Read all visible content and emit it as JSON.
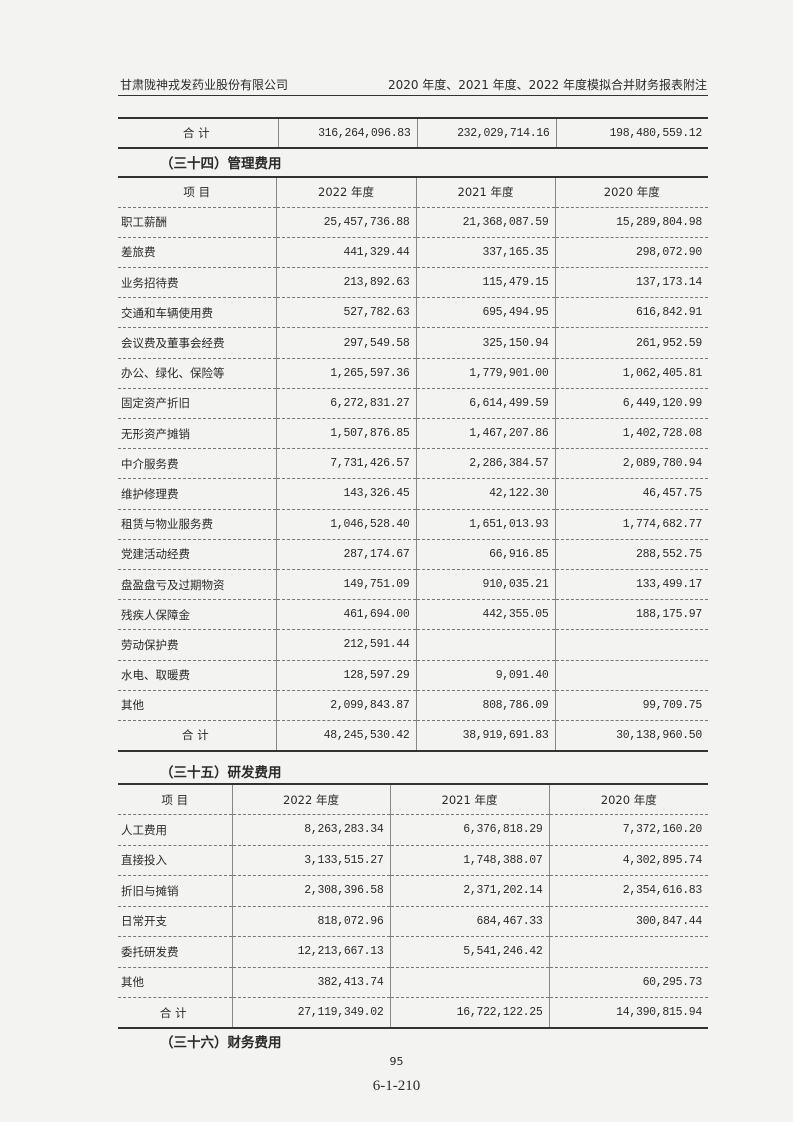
{
  "header": {
    "company": "甘肃陇神戎发药业股份有限公司",
    "report": "2020 年度、2021 年度、2022 年度模拟合并财务报表附注"
  },
  "prev_total": {
    "label": "合  计",
    "values": [
      "316,264,096.83",
      "232,029,714.16",
      "198,480,559.12"
    ]
  },
  "admin_expenses": {
    "title": "（三十四）管理费用",
    "columns": [
      "项  目",
      "2022 年度",
      "2021 年度",
      "2020 年度"
    ],
    "rows": [
      [
        "职工薪酬",
        "25,457,736.88",
        "21,368,087.59",
        "15,289,804.98"
      ],
      [
        "差旅费",
        "441,329.44",
        "337,165.35",
        "298,072.90"
      ],
      [
        "业务招待费",
        "213,892.63",
        "115,479.15",
        "137,173.14"
      ],
      [
        "交通和车辆使用费",
        "527,782.63",
        "695,494.95",
        "616,842.91"
      ],
      [
        "会议费及董事会经费",
        "297,549.58",
        "325,150.94",
        "261,952.59"
      ],
      [
        "办公、绿化、保险等",
        "1,265,597.36",
        "1,779,901.00",
        "1,062,405.81"
      ],
      [
        "固定资产折旧",
        "6,272,831.27",
        "6,614,499.59",
        "6,449,120.99"
      ],
      [
        "无形资产摊销",
        "1,507,876.85",
        "1,467,207.86",
        "1,402,728.08"
      ],
      [
        "中介服务费",
        "7,731,426.57",
        "2,286,384.57",
        "2,089,780.94"
      ],
      [
        "维护修理费",
        "143,326.45",
        "42,122.30",
        "46,457.75"
      ],
      [
        "租赁与物业服务费",
        "1,046,528.40",
        "1,651,013.93",
        "1,774,682.77"
      ],
      [
        "党建活动经费",
        "287,174.67",
        "66,916.85",
        "288,552.75"
      ],
      [
        "盘盈盘亏及过期物资",
        "149,751.09",
        "910,035.21",
        "133,499.17"
      ],
      [
        "残疾人保障金",
        "461,694.00",
        "442,355.05",
        "188,175.97"
      ],
      [
        "劳动保护费",
        "212,591.44",
        "",
        ""
      ],
      [
        "水电、取暖费",
        "128,597.29",
        "9,091.40",
        ""
      ],
      [
        "其他",
        "2,099,843.87",
        "808,786.09",
        "99,709.75"
      ]
    ],
    "total": [
      "合  计",
      "48,245,530.42",
      "38,919,691.83",
      "30,138,960.50"
    ]
  },
  "rd_expenses": {
    "title": "（三十五）研发费用",
    "columns": [
      "项  目",
      "2022 年度",
      "2021 年度",
      "2020 年度"
    ],
    "rows": [
      [
        "人工费用",
        "8,263,283.34",
        "6,376,818.29",
        "7,372,160.20"
      ],
      [
        "直接投入",
        "3,133,515.27",
        "1,748,388.07",
        "4,302,895.74"
      ],
      [
        "折旧与摊销",
        "2,308,396.58",
        "2,371,202.14",
        "2,354,616.83"
      ],
      [
        "日常开支",
        "818,072.96",
        "684,467.33",
        "300,847.44"
      ],
      [
        "委托研发费",
        "12,213,667.13",
        "5,541,246.42",
        ""
      ],
      [
        "其他",
        "382,413.74",
        "",
        "60,295.73"
      ]
    ],
    "total": [
      "合  计",
      "27,119,349.02",
      "16,722,122.25",
      "14,390,815.94"
    ]
  },
  "next_section": {
    "title": "（三十六）财务费用"
  },
  "footer": {
    "page_number": "95",
    "page_code": "6-1-210"
  }
}
